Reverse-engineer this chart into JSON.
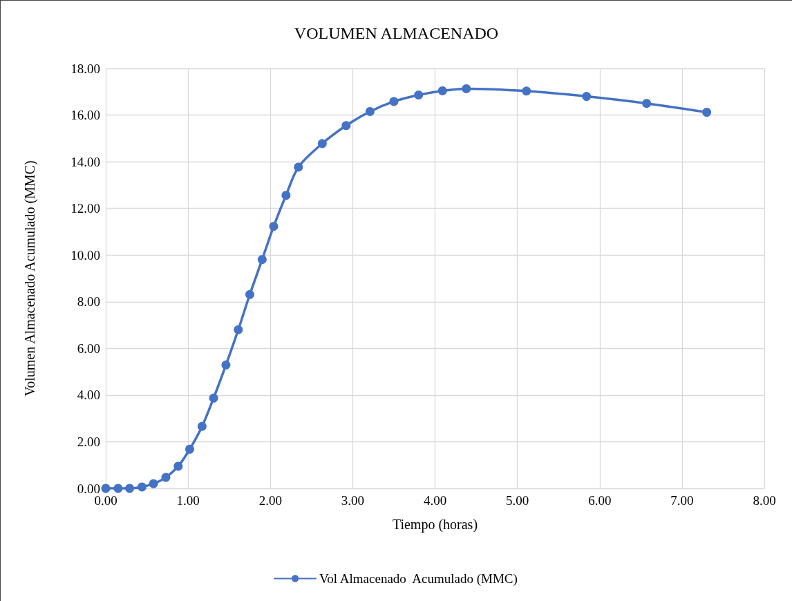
{
  "chart_data": {
    "type": "line",
    "title": "VOLUMEN ALMACENADO",
    "xlabel": "Tiempo (horas)",
    "ylabel": "Volumen Almacenado Acumulado (MMC)",
    "x": [
      0,
      0.15,
      0.29,
      0.44,
      0.58,
      0.73,
      0.88,
      1.02,
      1.17,
      1.31,
      1.46,
      1.61,
      1.75,
      1.9,
      2.04,
      2.19,
      2.34,
      2.63,
      2.92,
      3.21,
      3.5,
      3.8,
      4.09,
      4.38,
      5.11,
      5.84,
      6.57,
      7.3
    ],
    "series": [
      {
        "name": "Vol Almacenado  Acumulado (MMC)",
        "color": "#4472c4",
        "values": [
          0,
          0,
          0,
          0.06,
          0.2,
          0.47,
          0.95,
          1.68,
          2.66,
          3.87,
          5.29,
          6.8,
          8.31,
          9.81,
          11.23,
          12.56,
          13.77,
          14.78,
          15.55,
          16.15,
          16.58,
          16.86,
          17.04,
          17.13,
          17.03,
          16.8,
          16.5,
          16.12
        ]
      }
    ],
    "xlim": [
      0,
      8
    ],
    "xticks": [
      {
        "value": 0,
        "label": "0.00"
      },
      {
        "value": 1,
        "label": "1.00"
      },
      {
        "value": 2,
        "label": "2.00"
      },
      {
        "value": 3,
        "label": "3.00"
      },
      {
        "value": 4,
        "label": "4.00"
      },
      {
        "value": 5,
        "label": "5.00"
      },
      {
        "value": 6,
        "label": "6.00"
      },
      {
        "value": 7,
        "label": "7.00"
      },
      {
        "value": 8,
        "label": "8.00"
      }
    ],
    "ylim": [
      0,
      18
    ],
    "yticks": [
      {
        "value": 0,
        "label": "0.00"
      },
      {
        "value": 2,
        "label": "2.00"
      },
      {
        "value": 4,
        "label": "4.00"
      },
      {
        "value": 6,
        "label": "6.00"
      },
      {
        "value": 8,
        "label": "8.00"
      },
      {
        "value": 10,
        "label": "10.00"
      },
      {
        "value": 12,
        "label": "12.00"
      },
      {
        "value": 14,
        "label": "14.00"
      },
      {
        "value": 16,
        "label": "16.00"
      },
      {
        "value": 18,
        "label": "18.00"
      }
    ],
    "grid": true,
    "legend": "bottom",
    "marker": "circle",
    "line_style": "solid"
  }
}
